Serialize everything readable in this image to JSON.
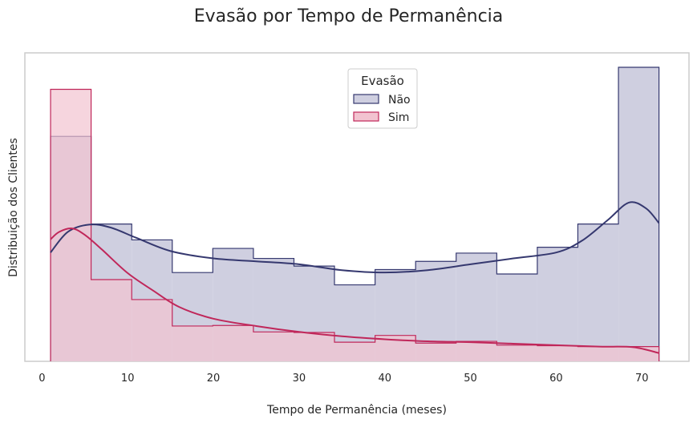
{
  "chart_data": {
    "type": "histogram",
    "title": "Evasão por Tempo de Permanência",
    "xlabel": "Tempo de Permanência (meses)",
    "ylabel": "Distribuição dos Clientes",
    "xlim": [
      -2,
      75.5
    ],
    "ylim": [
      0,
      1
    ],
    "xticks": [
      0,
      10,
      20,
      30,
      40,
      50,
      60,
      70
    ],
    "grid": false,
    "legend": {
      "title": "Evasão",
      "position": "top-center"
    },
    "bin_edges": [
      1,
      5.73,
      10.47,
      15.2,
      19.93,
      24.67,
      29.4,
      34.13,
      38.87,
      43.6,
      48.33,
      53.07,
      57.8,
      62.53,
      67.27,
      72
    ],
    "series": [
      {
        "name": "Não",
        "color": "#35386f",
        "fill": "#cfcfe0",
        "values": [
          0.765,
          0.467,
          0.413,
          0.302,
          0.384,
          0.35,
          0.324,
          0.26,
          0.312,
          0.34,
          0.368,
          0.297,
          0.388,
          0.467,
          1.0
        ],
        "kde": [
          [
            1,
            0.37
          ],
          [
            3,
            0.44
          ],
          [
            5.5,
            0.465
          ],
          [
            8,
            0.455
          ],
          [
            11,
            0.42
          ],
          [
            15,
            0.375
          ],
          [
            20,
            0.35
          ],
          [
            25,
            0.34
          ],
          [
            30,
            0.33
          ],
          [
            35,
            0.31
          ],
          [
            40,
            0.302
          ],
          [
            45,
            0.31
          ],
          [
            50,
            0.33
          ],
          [
            55,
            0.35
          ],
          [
            60,
            0.37
          ],
          [
            63,
            0.41
          ],
          [
            66,
            0.48
          ],
          [
            68.5,
            0.54
          ],
          [
            70.5,
            0.52
          ],
          [
            72,
            0.47
          ]
        ]
      },
      {
        "name": "Sim",
        "color": "#c0275a",
        "fill": "#f2c3d0",
        "values": [
          0.925,
          0.278,
          0.21,
          0.12,
          0.122,
          0.1,
          0.098,
          0.065,
          0.088,
          0.062,
          0.068,
          0.055,
          0.053,
          0.05,
          0.05
        ],
        "kde": [
          [
            1,
            0.415
          ],
          [
            2,
            0.44
          ],
          [
            3.5,
            0.452
          ],
          [
            5,
            0.43
          ],
          [
            7,
            0.38
          ],
          [
            10,
            0.3
          ],
          [
            13,
            0.24
          ],
          [
            16,
            0.185
          ],
          [
            20,
            0.145
          ],
          [
            25,
            0.12
          ],
          [
            30,
            0.1
          ],
          [
            35,
            0.085
          ],
          [
            40,
            0.075
          ],
          [
            45,
            0.068
          ],
          [
            50,
            0.065
          ],
          [
            55,
            0.06
          ],
          [
            60,
            0.055
          ],
          [
            65,
            0.05
          ],
          [
            69,
            0.048
          ],
          [
            72,
            0.028
          ]
        ]
      }
    ]
  }
}
